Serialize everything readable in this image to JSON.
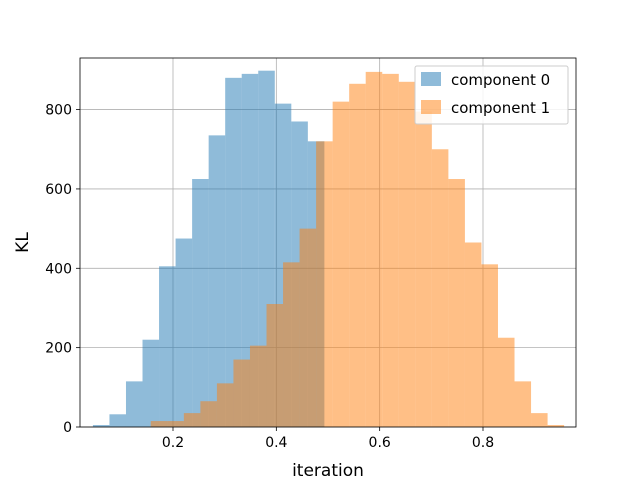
{
  "chart_data": {
    "type": "bar",
    "subtype": "histogram",
    "xlabel": "iteration",
    "ylabel": "KL",
    "xlim": [
      0.02,
      0.98
    ],
    "ylim": [
      0,
      930
    ],
    "x_ticks": [
      0.2,
      0.4,
      0.6,
      0.8
    ],
    "x_tick_labels": [
      "0.2",
      "0.4",
      "0.6",
      "0.8"
    ],
    "y_ticks": [
      0,
      200,
      400,
      600,
      800
    ],
    "y_tick_labels": [
      "0",
      "200",
      "400",
      "600",
      "800"
    ],
    "grid": true,
    "legend_position": "top-right",
    "series": [
      {
        "name": "component 0",
        "color": "#1f77b4",
        "alpha": 0.5,
        "bin_width": 0.032,
        "bin_starts": [
          0.045,
          0.077,
          0.109,
          0.141,
          0.173,
          0.205,
          0.237,
          0.269,
          0.301,
          0.333,
          0.365,
          0.397,
          0.429,
          0.461
        ],
        "counts": [
          5,
          32,
          115,
          220,
          405,
          475,
          625,
          735,
          880,
          890,
          898,
          815,
          770,
          720
        ]
      },
      {
        "name": "component 1",
        "color": "#ff7f0e",
        "alpha": 0.5,
        "bin_width": 0.032,
        "bin_starts": [
          0.157,
          0.189,
          0.221,
          0.253,
          0.285,
          0.317,
          0.349,
          0.381,
          0.413,
          0.445,
          0.477,
          0.509,
          0.541,
          0.573,
          0.605,
          0.637,
          0.669,
          0.701,
          0.733,
          0.765,
          0.797,
          0.829,
          0.861,
          0.893,
          0.925
        ],
        "counts": [
          15,
          15,
          35,
          65,
          110,
          170,
          205,
          310,
          415,
          500,
          720,
          820,
          865,
          895,
          890,
          870,
          795,
          700,
          625,
          465,
          410,
          225,
          115,
          35,
          5
        ]
      }
    ]
  }
}
